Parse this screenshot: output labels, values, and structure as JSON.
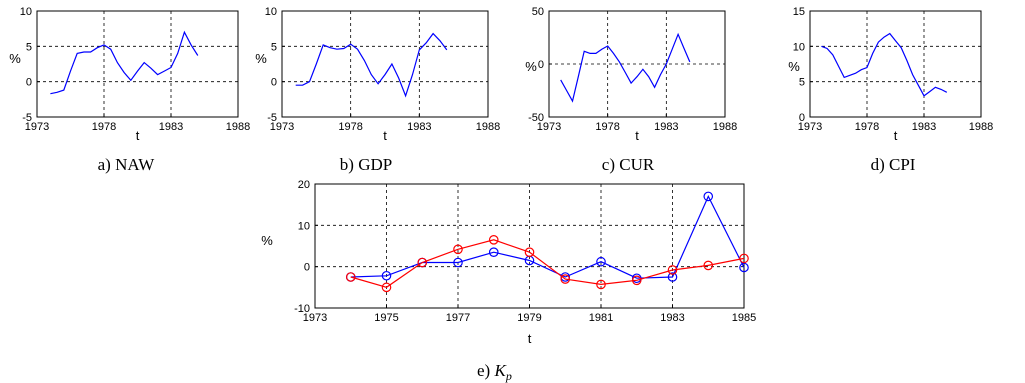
{
  "colors": {
    "blue": "#0000ff",
    "red": "#ff0000",
    "axis": "#000000",
    "grid": "#000000"
  },
  "chart_data": [
    {
      "type": "line",
      "caption": "a) NAW",
      "xlabel": "t",
      "ylabel": "%",
      "xlim": [
        1973,
        1988
      ],
      "ylim": [
        -5,
        10
      ],
      "xticks": [
        1973,
        1978,
        1983,
        1988
      ],
      "yticks": [
        -5,
        0,
        5,
        10
      ],
      "grid_x": [
        1978,
        1983
      ],
      "grid_y": [
        0,
        5
      ],
      "series": [
        {
          "color": "blue",
          "marker": "none",
          "x": [
            1974,
            1974.5,
            1975,
            1975.5,
            1976,
            1976.5,
            1977,
            1977.5,
            1978,
            1978.5,
            1979,
            1979.5,
            1980,
            1980.5,
            1981,
            1981.5,
            1982,
            1982.5,
            1983,
            1983.5,
            1984,
            1984.5,
            1985
          ],
          "y": [
            -1.7,
            -1.5,
            -1.2,
            1.5,
            4.0,
            4.2,
            4.2,
            4.8,
            5.2,
            4.6,
            2.7,
            1.3,
            0.2,
            1.5,
            2.7,
            1.9,
            1.0,
            1.5,
            2.0,
            4.0,
            7.0,
            5.2,
            3.7
          ]
        }
      ]
    },
    {
      "type": "line",
      "caption": "b) GDP",
      "xlabel": "t",
      "ylabel": "%",
      "xlim": [
        1973,
        1988
      ],
      "ylim": [
        -5,
        10
      ],
      "xticks": [
        1973,
        1978,
        1983,
        1988
      ],
      "yticks": [
        -5,
        0,
        5,
        10
      ],
      "grid_x": [
        1978,
        1983
      ],
      "grid_y": [
        0,
        5
      ],
      "series": [
        {
          "color": "blue",
          "marker": "none",
          "x": [
            1974,
            1974.5,
            1975,
            1975.5,
            1976,
            1976.5,
            1977,
            1977.5,
            1978,
            1978.5,
            1979,
            1979.5,
            1980,
            1980.5,
            1981,
            1981.5,
            1982,
            1982.5,
            1983,
            1983.5,
            1984,
            1984.5,
            1985
          ],
          "y": [
            -0.5,
            -0.5,
            0.0,
            2.5,
            5.2,
            4.8,
            4.6,
            4.7,
            5.3,
            4.6,
            3.0,
            1.0,
            -0.3,
            1.0,
            2.5,
            0.5,
            -2.0,
            1.0,
            4.5,
            5.5,
            6.8,
            5.8,
            4.5
          ]
        }
      ]
    },
    {
      "type": "line",
      "caption": "c) CUR",
      "xlabel": "t",
      "ylabel": "%",
      "xlim": [
        1973,
        1988
      ],
      "ylim": [
        -50,
        50
      ],
      "xticks": [
        1973,
        1978,
        1983,
        1988
      ],
      "yticks": [
        -50,
        0,
        50
      ],
      "grid_x": [
        1978,
        1983
      ],
      "grid_y": [
        0
      ],
      "series": [
        {
          "color": "blue",
          "marker": "none",
          "x": [
            1974,
            1974.5,
            1975,
            1975.5,
            1976,
            1976.5,
            1977,
            1977.5,
            1978,
            1978.5,
            1979,
            1979.5,
            1980,
            1980.5,
            1981,
            1981.5,
            1982,
            1982.5,
            1983,
            1983.5,
            1984,
            1984.5,
            1985
          ],
          "y": [
            -15,
            -25,
            -35,
            -12,
            12,
            10,
            10,
            14,
            17,
            10,
            2,
            -8,
            -18,
            -12,
            -5,
            -12,
            -22,
            -10,
            0,
            14,
            28,
            15,
            2
          ]
        }
      ]
    },
    {
      "type": "line",
      "caption": "d) CPI",
      "xlabel": "t",
      "ylabel": "%",
      "xlim": [
        1973,
        1988
      ],
      "ylim": [
        0,
        15
      ],
      "xticks": [
        1973,
        1978,
        1983,
        1988
      ],
      "yticks": [
        0,
        5,
        10,
        15
      ],
      "grid_x": [
        1978,
        1983
      ],
      "grid_y": [
        5,
        10
      ],
      "series": [
        {
          "color": "blue",
          "marker": "none",
          "x": [
            1974,
            1974.5,
            1975,
            1975.5,
            1976,
            1976.5,
            1977,
            1977.5,
            1978,
            1978.5,
            1979,
            1979.5,
            1980,
            1980.5,
            1981,
            1981.5,
            1982,
            1982.5,
            1983,
            1983.5,
            1984,
            1984.5,
            1985
          ],
          "y": [
            10.0,
            9.7,
            8.8,
            7.2,
            5.6,
            5.9,
            6.2,
            6.7,
            7.0,
            9.0,
            10.6,
            11.3,
            11.8,
            10.8,
            9.8,
            8.0,
            6.0,
            4.5,
            3.0,
            3.6,
            4.2,
            3.9,
            3.5
          ]
        }
      ]
    },
    {
      "type": "line",
      "caption_prefix": "e) ",
      "caption_symbol": "K",
      "caption_subscript": "p",
      "xlabel": "t",
      "ylabel": "%",
      "xlim": [
        1973,
        1985
      ],
      "ylim": [
        -10,
        20
      ],
      "xticks": [
        1973,
        1975,
        1977,
        1979,
        1981,
        1983,
        1985
      ],
      "yticks": [
        -10,
        0,
        10,
        20
      ],
      "grid_x": [
        1975,
        1977,
        1979,
        1981,
        1983
      ],
      "grid_y": [
        0,
        10
      ],
      "series": [
        {
          "color": "blue",
          "marker": "circle",
          "x": [
            1974,
            1975,
            1976,
            1977,
            1978,
            1979,
            1980,
            1981,
            1982,
            1983,
            1984,
            1985
          ],
          "y": [
            -2.5,
            -2.2,
            1.0,
            1.0,
            3.5,
            1.5,
            -2.5,
            1.2,
            -2.8,
            -2.5,
            17.0,
            -0.2
          ]
        },
        {
          "color": "red",
          "marker": "circle",
          "x": [
            1974,
            1975,
            1976,
            1977,
            1978,
            1979,
            1980,
            1981,
            1982,
            1983,
            1984,
            1985
          ],
          "y": [
            -2.5,
            -5.0,
            1.0,
            4.2,
            6.5,
            3.5,
            -3.0,
            -4.3,
            -3.3,
            -0.8,
            0.3,
            2.0
          ]
        }
      ]
    }
  ]
}
